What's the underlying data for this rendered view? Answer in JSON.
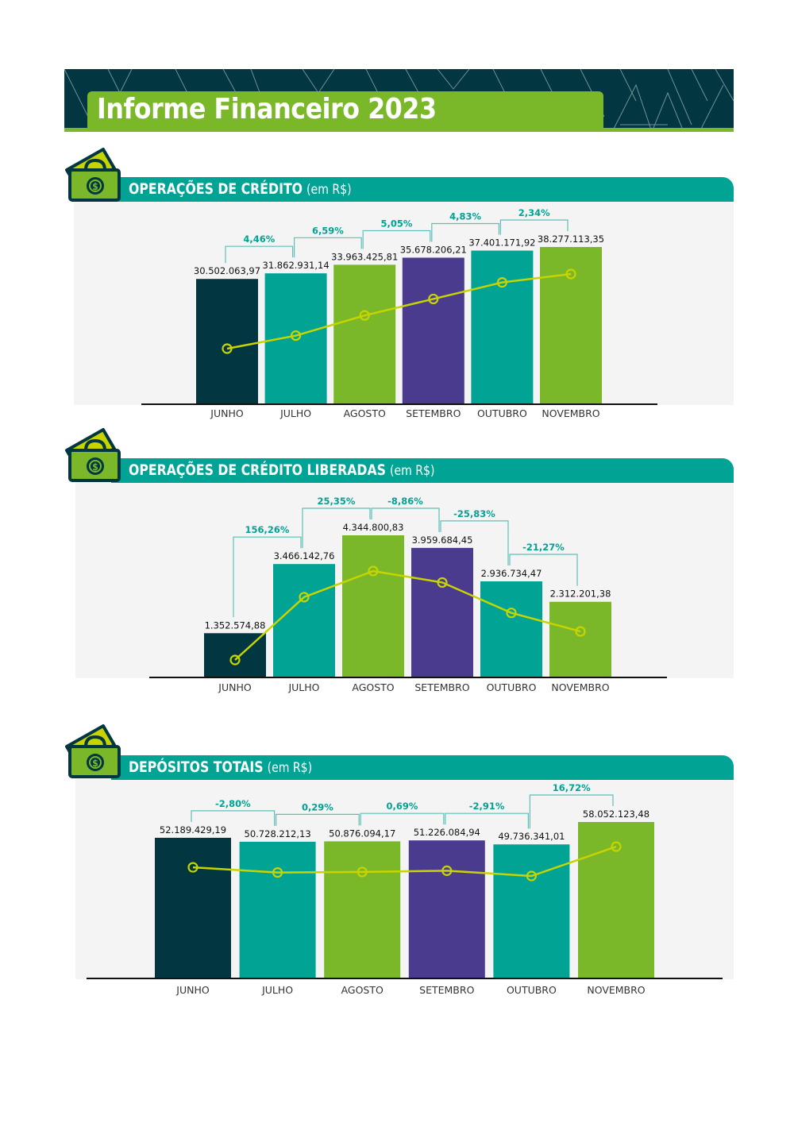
{
  "header": {
    "title": "Informe Financeiro 2023"
  },
  "colors": {
    "dark": "#023641",
    "teal": "#00a394",
    "green": "#7ab829",
    "purple": "#4b3b8f",
    "line": "#c8d400",
    "bracket": "#5fbfb8",
    "pct": "#00a394"
  },
  "sections": [
    {
      "title": "OPERAÇÕES DE CRÉDITO",
      "unit": "(em R$)",
      "icon": "money-wallet-icon"
    },
    {
      "title": "OPERAÇÕES DE CRÉDITO LIBERADAS",
      "unit": "(em R$)",
      "icon": "money-wallet-icon"
    },
    {
      "title": "DEPÓSITOS TOTAIS",
      "unit": "(em R$)",
      "icon": "money-wallet-icon"
    }
  ],
  "chart_data": [
    {
      "type": "bar",
      "title": "OPERAÇÕES DE CRÉDITO (em R$)",
      "categories": [
        "JUNHO",
        "JULHO",
        "AGOSTO",
        "SETEMBRO",
        "OUTUBRO",
        "NOVEMBRO"
      ],
      "values": [
        30502063.97,
        31862931.14,
        33963425.81,
        35678206.21,
        37401171.92,
        38277113.35
      ],
      "value_labels": [
        "30.502.063,97",
        "31.862.931,14",
        "33.963.425,81",
        "35.678.206,21",
        "37.401.171,92",
        "38.277.113,35"
      ],
      "changes": [
        "4,46%",
        "6,59%",
        "5,05%",
        "4,83%",
        "2,34%"
      ],
      "bar_colors": [
        "#023641",
        "#00a394",
        "#7ab829",
        "#4b3b8f",
        "#00a394",
        "#7ab829"
      ],
      "line_overlay": true
    },
    {
      "type": "bar",
      "title": "OPERAÇÕES DE CRÉDITO LIBERADAS (em R$)",
      "categories": [
        "JUNHO",
        "JULHO",
        "AGOSTO",
        "SETEMBRO",
        "OUTUBRO",
        "NOVEMBRO"
      ],
      "values": [
        1352574.88,
        3466142.76,
        4344800.83,
        3959684.45,
        2936734.47,
        2312201.38
      ],
      "value_labels": [
        "1.352.574,88",
        "3.466.142,76",
        "4.344.800,83",
        "3.959.684,45",
        "2.936.734,47",
        "2.312.201,38"
      ],
      "changes": [
        "156,26%",
        "25,35%",
        "-8,86%",
        "-25,83%",
        "-21,27%"
      ],
      "bar_colors": [
        "#023641",
        "#00a394",
        "#7ab829",
        "#4b3b8f",
        "#00a394",
        "#7ab829"
      ],
      "line_overlay": true
    },
    {
      "type": "bar",
      "title": "DEPÓSITOS TOTAIS (em R$)",
      "categories": [
        "JUNHO",
        "JULHO",
        "AGOSTO",
        "SETEMBRO",
        "OUTUBRO",
        "NOVEMBRO"
      ],
      "values": [
        52189429.19,
        50728212.13,
        50876094.17,
        51226084.94,
        49736341.01,
        58052123.48
      ],
      "value_labels": [
        "52.189.429,19",
        "50.728.212,13",
        "50.876.094,17",
        "51.226.084,94",
        "49.736.341,01",
        "58.052.123,48"
      ],
      "changes": [
        "-2,80%",
        "0,29%",
        "0,69%",
        "-2,91%",
        "16,72%"
      ],
      "bar_colors": [
        "#023641",
        "#00a394",
        "#7ab829",
        "#4b3b8f",
        "#00a394",
        "#7ab829"
      ],
      "line_overlay": true
    }
  ]
}
